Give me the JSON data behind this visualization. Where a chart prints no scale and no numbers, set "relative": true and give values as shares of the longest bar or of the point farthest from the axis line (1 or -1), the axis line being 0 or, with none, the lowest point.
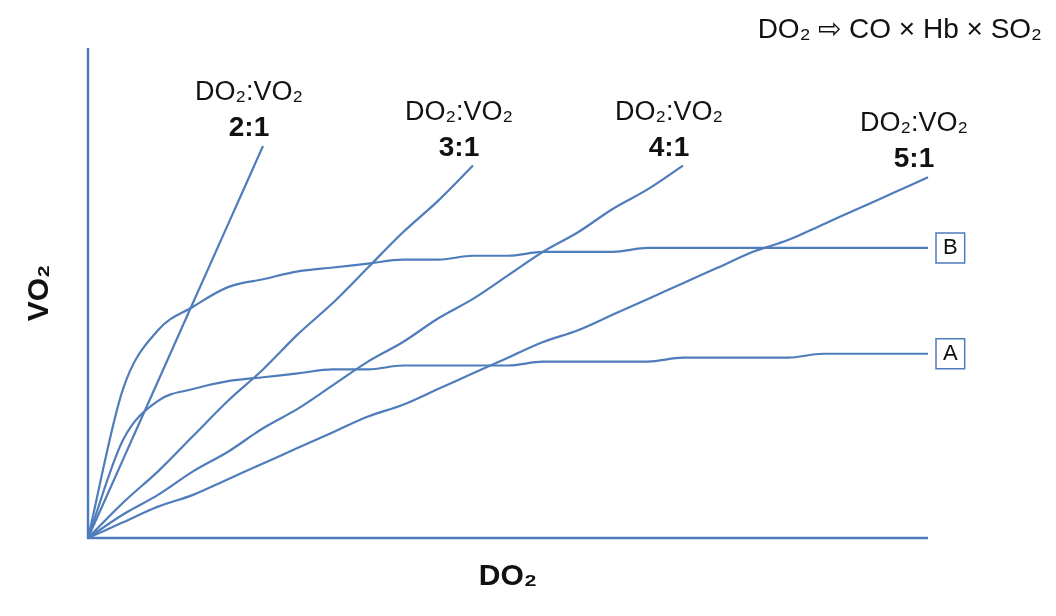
{
  "chart_data": {
    "type": "line",
    "relative": true,
    "xlabel": "DO₂",
    "ylabel": "VO₂",
    "annotations": [
      "DO₂ ⇨ CO × Hb × SO₂"
    ],
    "legend": false,
    "marker": "none",
    "categories": [
      null,
      null,
      null,
      null,
      null,
      null,
      null,
      null,
      null,
      null,
      null,
      null,
      null,
      null,
      null,
      null,
      null,
      null,
      null,
      null,
      null,
      null,
      null,
      null,
      null
    ],
    "series": [
      {
        "name": "DO₂:VO₂ 2:1",
        "color": "#4f7cba",
        "values": [
          0,
          0.2,
          0.4,
          0.6,
          0.8,
          1.0,
          null,
          null,
          null,
          null,
          null,
          null,
          null,
          null,
          null,
          null,
          null,
          null,
          null,
          null,
          null,
          null,
          null,
          null,
          null
        ]
      },
      {
        "name": "DO₂:VO₂ 3:1",
        "color": "#4f7cba",
        "values": [
          0,
          0.09,
          0.17,
          0.26,
          0.35,
          0.43,
          0.52,
          0.6,
          0.69,
          0.78,
          0.86,
          0.95,
          null,
          null,
          null,
          null,
          null,
          null,
          null,
          null,
          null,
          null,
          null,
          null,
          null
        ]
      },
      {
        "name": "DO₂:VO₂ 4:1",
        "color": "#4f7cba",
        "values": [
          0,
          0.06,
          0.11,
          0.17,
          0.22,
          0.28,
          0.33,
          0.39,
          0.45,
          0.5,
          0.56,
          0.61,
          0.67,
          0.73,
          0.78,
          0.84,
          0.89,
          0.95,
          null,
          null,
          null,
          null,
          null,
          null,
          null
        ]
      },
      {
        "name": "DO₂:VO₂ 5:1",
        "color": "#4f7cba",
        "values": [
          0,
          0.04,
          0.08,
          0.11,
          0.15,
          0.19,
          0.23,
          0.27,
          0.31,
          0.34,
          0.38,
          0.42,
          0.46,
          0.5,
          0.53,
          0.57,
          0.61,
          0.65,
          0.69,
          0.73,
          0.76,
          0.8,
          0.84,
          0.88,
          0.92
        ]
      },
      {
        "name": "B",
        "color": "#4f7cba",
        "values": [
          0,
          0.38,
          0.53,
          0.59,
          0.64,
          0.66,
          0.68,
          0.69,
          0.7,
          0.71,
          0.71,
          0.72,
          0.72,
          0.73,
          0.73,
          0.73,
          0.74,
          0.74,
          0.74,
          0.74,
          0.74,
          0.74,
          0.74,
          0.74,
          0.74
        ]
      },
      {
        "name": "A",
        "color": "#4f7cba",
        "values": [
          0,
          0.25,
          0.35,
          0.38,
          0.4,
          0.41,
          0.42,
          0.43,
          0.43,
          0.44,
          0.44,
          0.44,
          0.44,
          0.45,
          0.45,
          0.45,
          0.45,
          0.46,
          0.46,
          0.46,
          0.46,
          0.47,
          0.47,
          0.47,
          0.47
        ]
      }
    ]
  }
}
